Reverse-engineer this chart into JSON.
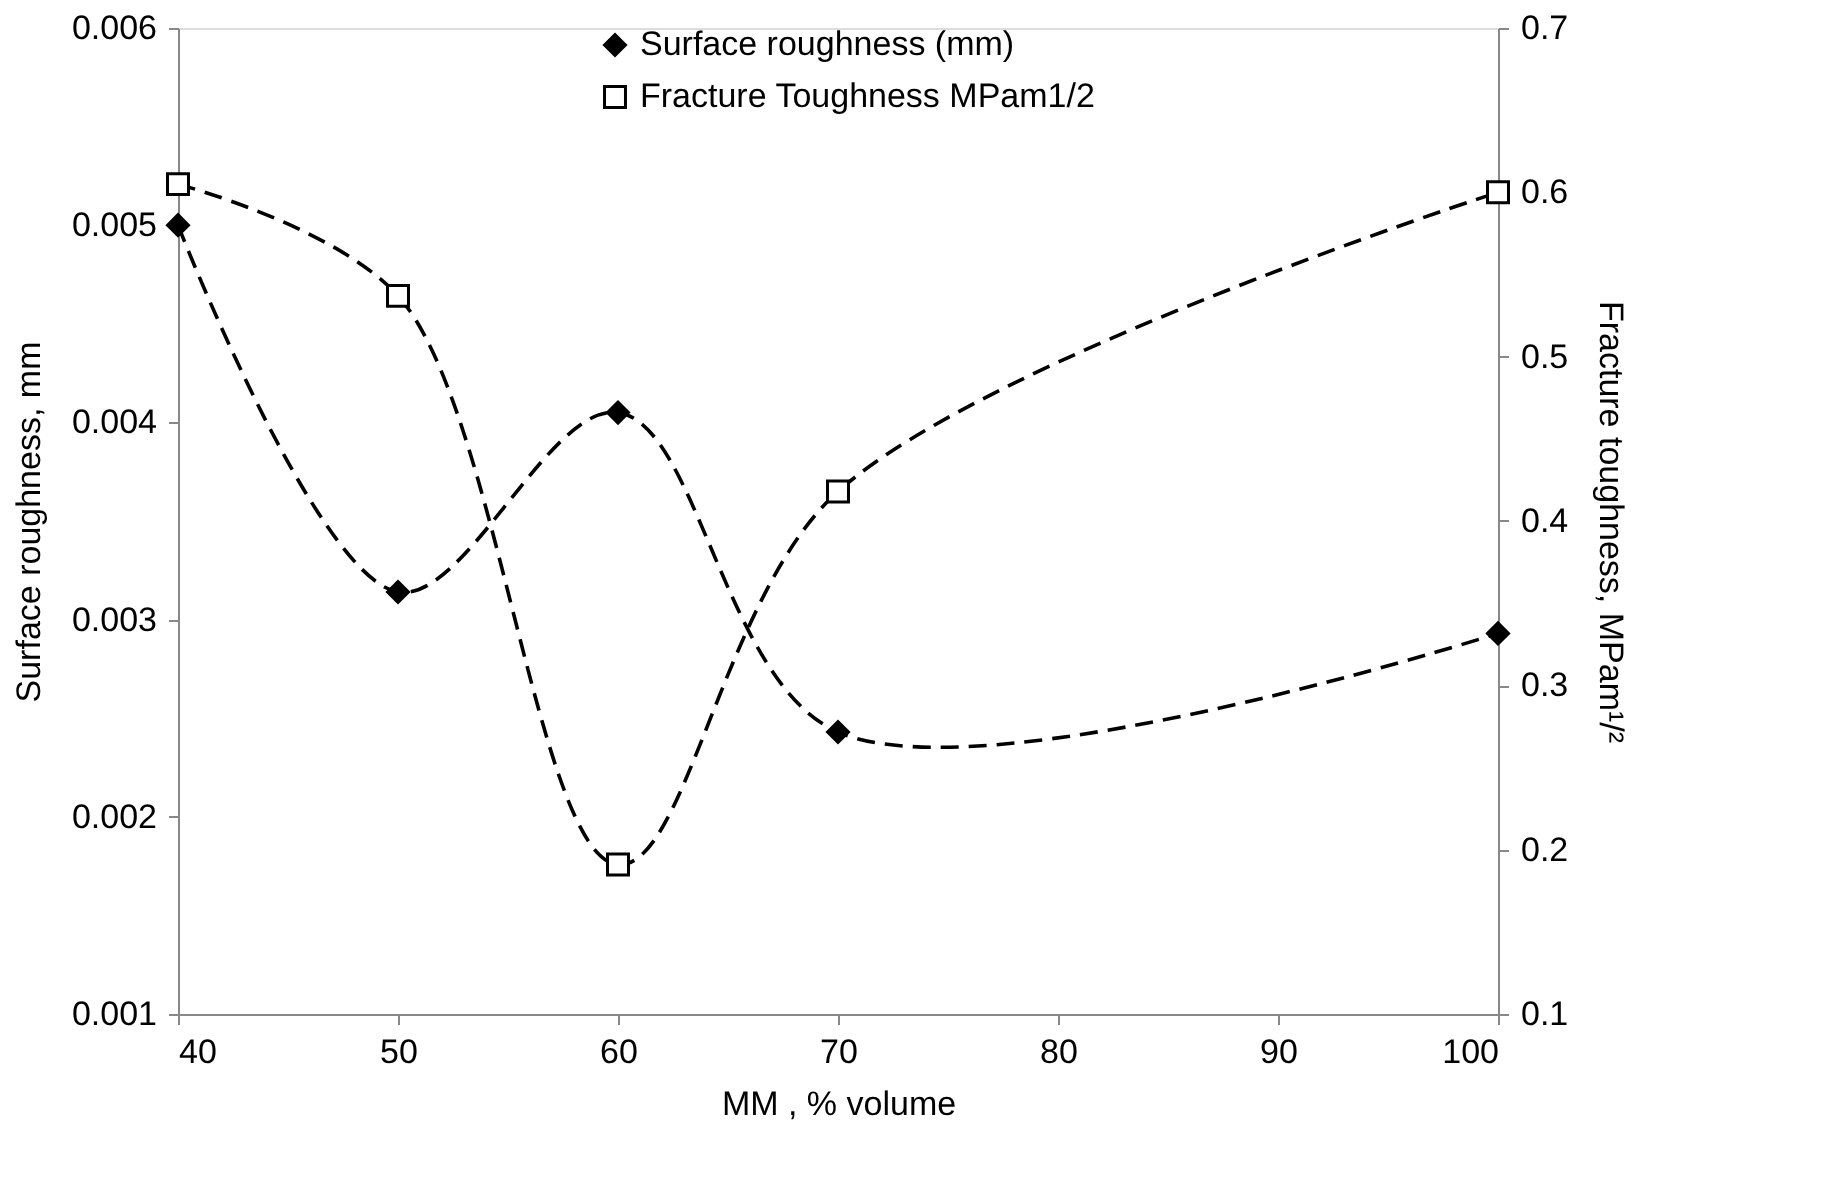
{
  "chart_data": {
    "type": "line",
    "xlabel": "MM , % volume",
    "ylabel": "Surface roughness,  mm",
    "y2label": "Fracture toughness,  MPam¹/²",
    "x": [
      40,
      50,
      60,
      70,
      100
    ],
    "series": [
      {
        "name": "Surface roughness (mm)",
        "color": "#000000",
        "marker": "diamond",
        "values": [
          0.005,
          0.00314,
          0.00405,
          0.00243,
          0.00293
        ]
      },
      {
        "name": "Fracture Toughness MPam1/2",
        "color": "#000000",
        "marker": "square",
        "axis": "y2",
        "values": [
          0.605,
          0.537,
          0.191,
          0.418,
          0.6
        ]
      }
    ],
    "xlim": [
      40,
      100
    ],
    "xticks": [
      40,
      50,
      60,
      70,
      80,
      90,
      100
    ],
    "ylim": [
      0.001,
      0.006
    ],
    "yticks": [
      0.001,
      0.002,
      0.003,
      0.004,
      0.005,
      0.006
    ],
    "y2lim": [
      0.1,
      0.7
    ],
    "y2ticks": [
      0.1,
      0.2,
      0.3,
      0.4,
      0.5,
      0.6,
      0.7
    ],
    "grid": false,
    "legend": "top",
    "line_style": "dashed"
  }
}
